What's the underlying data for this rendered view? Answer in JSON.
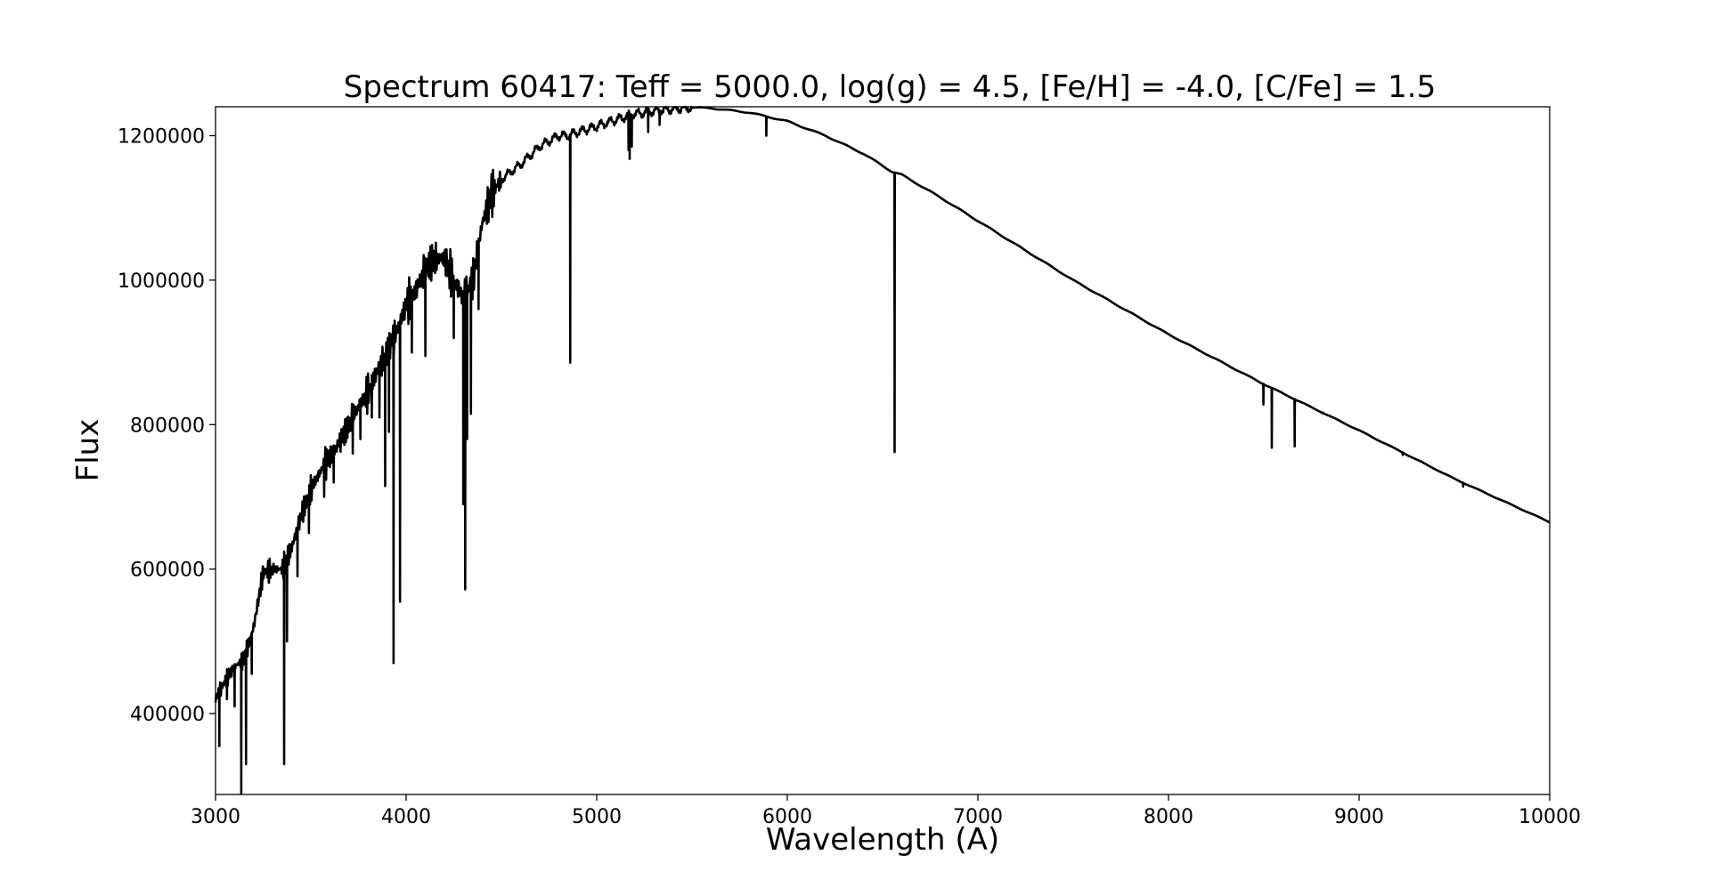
{
  "chart_data": {
    "type": "line",
    "title": "Spectrum 60417: Teff = 5000.0, log(g) = 4.5, [Fe/H] = -4.0, [C/Fe] = 1.5",
    "xlabel": "Wavelength (A)",
    "ylabel": "Flux",
    "xlim": [
      3000,
      10000
    ],
    "ylim": [
      288000,
      1240000
    ],
    "grid": false,
    "line_color": "#000000",
    "x_ticks": [
      3000,
      4000,
      5000,
      6000,
      7000,
      8000,
      9000,
      10000
    ],
    "x_tick_labels": [
      "3000",
      "4000",
      "5000",
      "6000",
      "7000",
      "8000",
      "9000",
      "10000"
    ],
    "y_ticks": [
      400000,
      600000,
      800000,
      1000000,
      1200000
    ],
    "y_tick_labels": [
      "400000",
      "600000",
      "800000",
      "1000000",
      "1200000"
    ],
    "series": [
      {
        "name": "spectrum",
        "continuum": [
          [
            3000,
            420000
          ],
          [
            3050,
            445000
          ],
          [
            3100,
            465000
          ],
          [
            3150,
            475000
          ],
          [
            3200,
            520000
          ],
          [
            3250,
            595000
          ],
          [
            3300,
            600000
          ],
          [
            3350,
            600000
          ],
          [
            3400,
            630000
          ],
          [
            3450,
            675000
          ],
          [
            3500,
            710000
          ],
          [
            3550,
            735000
          ],
          [
            3600,
            755000
          ],
          [
            3650,
            775000
          ],
          [
            3700,
            800000
          ],
          [
            3750,
            825000
          ],
          [
            3800,
            845000
          ],
          [
            3850,
            875000
          ],
          [
            3900,
            900000
          ],
          [
            3950,
            930000
          ],
          [
            4000,
            965000
          ],
          [
            4050,
            985000
          ],
          [
            4100,
            1015000
          ],
          [
            4150,
            1030000
          ],
          [
            4200,
            1030000
          ],
          [
            4250,
            1000000
          ],
          [
            4300,
            975000
          ],
          [
            4350,
            1000000
          ],
          [
            4400,
            1080000
          ],
          [
            4450,
            1120000
          ],
          [
            4500,
            1140000
          ],
          [
            4600,
            1160000
          ],
          [
            4700,
            1185000
          ],
          [
            4800,
            1200000
          ],
          [
            4850,
            1200000
          ],
          [
            4900,
            1205000
          ],
          [
            5000,
            1213000
          ],
          [
            5100,
            1222000
          ],
          [
            5200,
            1230000
          ],
          [
            5300,
            1234000
          ],
          [
            5400,
            1237000
          ],
          [
            5500,
            1239000
          ],
          [
            5600,
            1238000
          ],
          [
            5800,
            1232000
          ],
          [
            6000,
            1220000
          ],
          [
            6200,
            1200000
          ],
          [
            6400,
            1175000
          ],
          [
            6550,
            1150000
          ],
          [
            6600,
            1146000
          ],
          [
            6800,
            1115000
          ],
          [
            7000,
            1082000
          ],
          [
            7500,
            1000000
          ],
          [
            8000,
            925000
          ],
          [
            8500,
            856000
          ],
          [
            9000,
            792000
          ],
          [
            9500,
            725000
          ],
          [
            10000,
            665000
          ]
        ],
        "absorption_lines": [
          {
            "x": 3020,
            "y": 355000
          },
          {
            "x": 3060,
            "y": 420000
          },
          {
            "x": 3100,
            "y": 410000
          },
          {
            "x": 3135,
            "y": 290000
          },
          {
            "x": 3160,
            "y": 330000
          },
          {
            "x": 3190,
            "y": 455000
          },
          {
            "x": 3360,
            "y": 330000
          },
          {
            "x": 3375,
            "y": 500000
          },
          {
            "x": 3430,
            "y": 590000
          },
          {
            "x": 3490,
            "y": 650000
          },
          {
            "x": 3570,
            "y": 700000
          },
          {
            "x": 3620,
            "y": 720000
          },
          {
            "x": 3720,
            "y": 760000
          },
          {
            "x": 3760,
            "y": 780000
          },
          {
            "x": 3820,
            "y": 810000
          },
          {
            "x": 3860,
            "y": 810000
          },
          {
            "x": 3890,
            "y": 715000
          },
          {
            "x": 3910,
            "y": 790000
          },
          {
            "x": 3934,
            "y": 470000
          },
          {
            "x": 3968,
            "y": 555000
          },
          {
            "x": 4030,
            "y": 900000
          },
          {
            "x": 4101,
            "y": 895000
          },
          {
            "x": 4250,
            "y": 920000
          },
          {
            "x": 4300,
            "y": 690000
          },
          {
            "x": 4310,
            "y": 572000
          },
          {
            "x": 4320,
            "y": 780000
          },
          {
            "x": 4340,
            "y": 815000
          },
          {
            "x": 4380,
            "y": 960000
          },
          {
            "x": 4861,
            "y": 886000
          },
          {
            "x": 5167,
            "y": 1180000
          },
          {
            "x": 5173,
            "y": 1168000
          },
          {
            "x": 5184,
            "y": 1185000
          },
          {
            "x": 5270,
            "y": 1205000
          },
          {
            "x": 5330,
            "y": 1215000
          },
          {
            "x": 5890,
            "y": 1200000
          },
          {
            "x": 6563,
            "y": 762000
          },
          {
            "x": 8498,
            "y": 828000
          },
          {
            "x": 8542,
            "y": 768000
          },
          {
            "x": 8662,
            "y": 770000
          },
          {
            "x": 8807,
            "y": 816000
          },
          {
            "x": 9229,
            "y": 758000
          },
          {
            "x": 9546,
            "y": 714000
          }
        ]
      }
    ]
  }
}
